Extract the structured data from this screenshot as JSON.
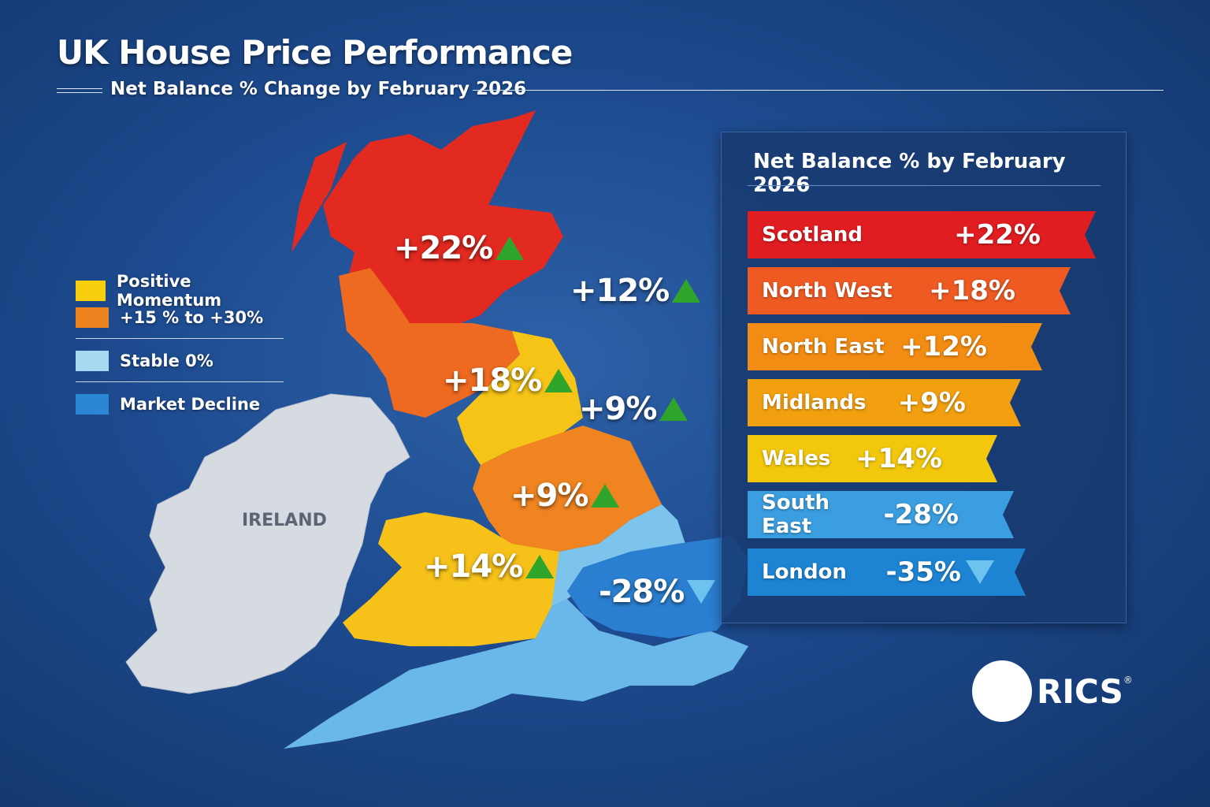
{
  "header": {
    "title": "UK House Price Performance",
    "subtitle": "Net Balance % Change by February 2026"
  },
  "legend": [
    {
      "label": "Positive Momentum",
      "color": "#f7cf0f"
    },
    {
      "label": "+15 % to +30%",
      "color": "#ee8420"
    },
    {
      "label": "Stable 0%",
      "color": "#a8d8f2"
    },
    {
      "label": "Market Decline",
      "color": "#2b86d3"
    }
  ],
  "map": {
    "ireland_label": "IRELAND",
    "labels": [
      {
        "text": "+22%",
        "trend": "up"
      },
      {
        "text": "+12%",
        "trend": "up"
      },
      {
        "text": "+18%",
        "trend": "up"
      },
      {
        "text": "+9%",
        "trend": "up"
      },
      {
        "text": "+9%",
        "trend": "up"
      },
      {
        "text": "+14%",
        "trend": "up"
      },
      {
        "text": "-28%",
        "trend": "down"
      }
    ],
    "region_colors": {
      "scotland": "#e32a20",
      "north_west": "#ee6a20",
      "north_east": "#f5c417",
      "midlands": "#f08420",
      "wales": "#f6c21a",
      "south_east": "#7cc4ec",
      "london": "#2b7fd0",
      "south_west": "#6ab8ea",
      "ireland": "#d6dbe2"
    }
  },
  "panel": {
    "title": "Net Balance % by February 2026",
    "rows": [
      {
        "region": "Scotland",
        "value": "+22%",
        "color": "#e01d21"
      },
      {
        "region": "North West",
        "value": "+18%",
        "color": "#ee5a22"
      },
      {
        "region": "North East",
        "value": "+12%",
        "color": "#f28c12"
      },
      {
        "region": "Midlands",
        "value": "+9%",
        "color": "#f2a00f"
      },
      {
        "region": "Wales",
        "value": "+14%",
        "color": "#f2c70c"
      },
      {
        "region": "South East",
        "value": "-28%",
        "color": "#3b9ee0"
      },
      {
        "region": "London",
        "value": "-35%",
        "color": "#1d84d4",
        "trend": "down"
      }
    ]
  },
  "logo": {
    "text": "RICS",
    "registered": "®"
  }
}
